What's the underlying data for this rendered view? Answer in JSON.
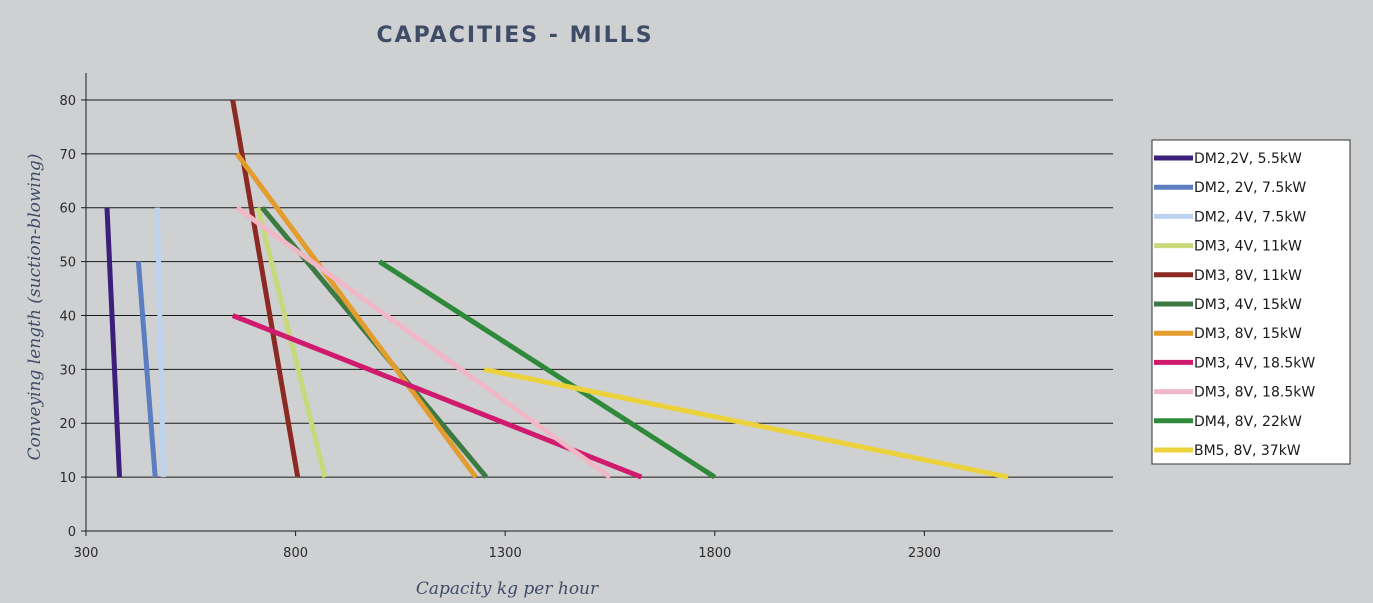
{
  "chart_data": {
    "type": "line",
    "title": "CAPACITIES - MILLS",
    "xlabel": "Capacity kg per hour",
    "ylabel": "Conveying length (suction-blowing)",
    "xlim": [
      300,
      2750
    ],
    "ylim": [
      0,
      85
    ],
    "xticks": [
      300,
      800,
      1300,
      1800,
      2300
    ],
    "yticks": [
      0,
      10,
      20,
      30,
      40,
      50,
      60,
      70,
      80
    ],
    "grid": "horizontal",
    "legend": "right",
    "series": [
      {
        "name": "DM2,2V, 5.5kW",
        "color": "#3b1f7a",
        "points": [
          [
            350,
            60
          ],
          [
            380,
            10
          ]
        ]
      },
      {
        "name": "DM2, 2V, 7.5kW",
        "color": "#5b7ec0",
        "points": [
          [
            425,
            50
          ],
          [
            465,
            10
          ]
        ]
      },
      {
        "name": "DM2, 4V, 7.5kW",
        "color": "#bcd3ef",
        "points": [
          [
            470,
            60
          ],
          [
            485,
            10
          ]
        ]
      },
      {
        "name": "DM3, 4V, 11kW",
        "color": "#c7d97a",
        "points": [
          [
            710,
            60
          ],
          [
            870,
            10
          ]
        ]
      },
      {
        "name": "DM3, 8V, 11kW",
        "color": "#8b2a22",
        "points": [
          [
            650,
            80
          ],
          [
            805,
            10
          ]
        ]
      },
      {
        "name": "DM3, 4V, 15kW",
        "color": "#3d7a42",
        "points": [
          [
            720,
            60
          ],
          [
            1255,
            10
          ]
        ]
      },
      {
        "name": "DM3, 8V, 15kW",
        "color": "#e39c2e",
        "points": [
          [
            660,
            70
          ],
          [
            1230,
            10
          ]
        ]
      },
      {
        "name": "DM3, 4V, 18.5kW",
        "color": "#cf1a6e",
        "points": [
          [
            650,
            40
          ],
          [
            1625,
            10
          ]
        ]
      },
      {
        "name": "DM3, 8V, 18.5kW",
        "color": "#f0b7c6",
        "points": [
          [
            660,
            60
          ],
          [
            1550,
            10
          ]
        ]
      },
      {
        "name": "DM4, 8V, 22kW",
        "color": "#2e8a3a",
        "points": [
          [
            1000,
            50
          ],
          [
            1800,
            10
          ]
        ]
      },
      {
        "name": "BM5, 8V, 37kW",
        "color": "#ecd23a",
        "points": [
          [
            1250,
            30
          ],
          [
            2500,
            10
          ]
        ]
      }
    ]
  }
}
